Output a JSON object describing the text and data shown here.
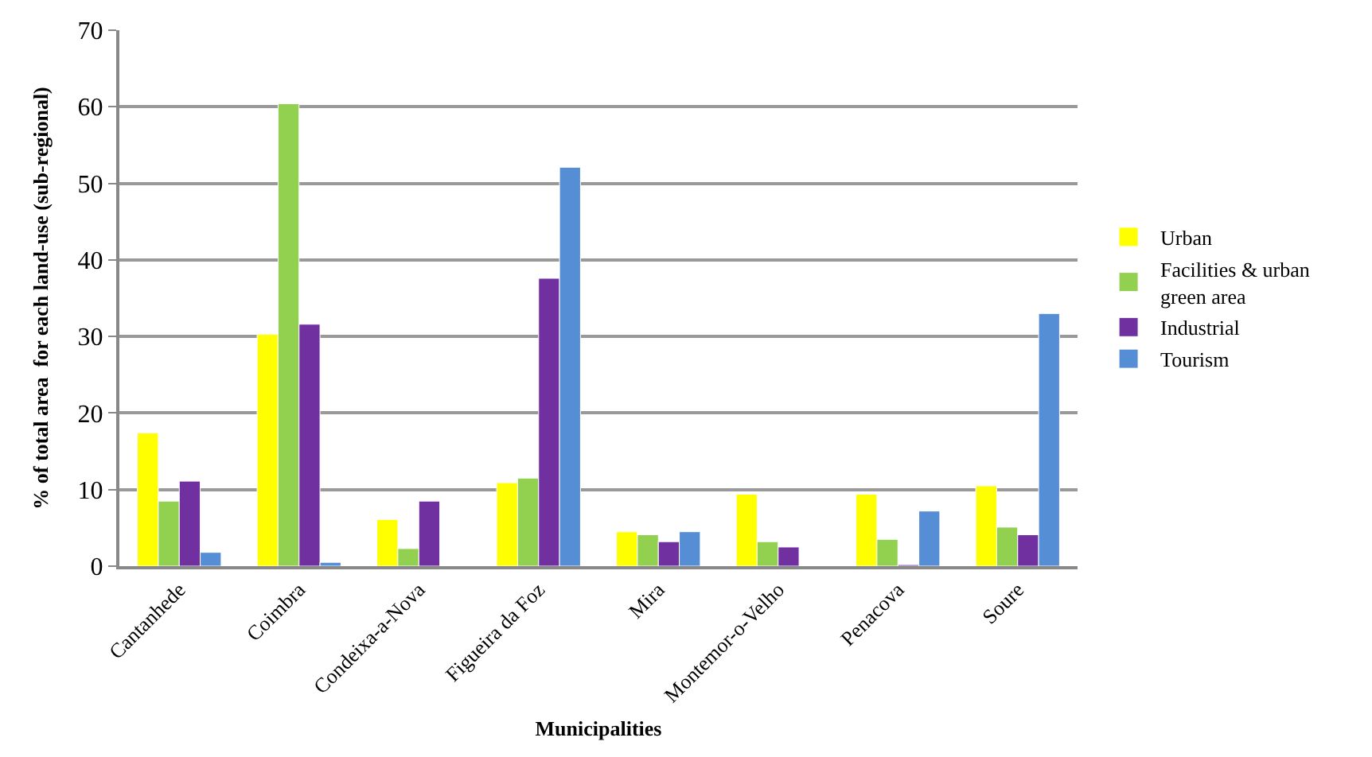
{
  "chart_data": {
    "type": "bar",
    "xlabel": "Municipalities",
    "ylabel": "% of total area  for each land-use (sub-regional)",
    "categories": [
      "Cantanhede",
      "Coimbra",
      "Condeixa-a-Nova",
      "Figueira da Foz",
      "Mira",
      "Montemor-o-Velho",
      "Penacova",
      "Soure"
    ],
    "series": [
      {
        "name": "Urban",
        "color": "#ffff00",
        "values": [
          17.4,
          30.3,
          6.1,
          10.9,
          4.5,
          9.4,
          9.4,
          10.5
        ]
      },
      {
        "name": "Facilities & urban green area",
        "color": "#92d050",
        "values": [
          8.5,
          60.4,
          2.3,
          11.5,
          4.1,
          3.2,
          3.5,
          5.1
        ]
      },
      {
        "name": "Industrial",
        "color": "#7030a0",
        "values": [
          11.1,
          31.6,
          8.5,
          37.6,
          3.2,
          2.5,
          0.2,
          4.1
        ]
      },
      {
        "name": "Tourism",
        "color": "#558ed5",
        "values": [
          1.8,
          0.5,
          null,
          52.1,
          4.5,
          null,
          7.2,
          33.0
        ]
      }
    ],
    "ylim": [
      0,
      70
    ],
    "yticks": [
      0,
      10,
      20,
      30,
      40,
      50,
      60,
      70
    ],
    "grid": "y",
    "legend": "right"
  }
}
